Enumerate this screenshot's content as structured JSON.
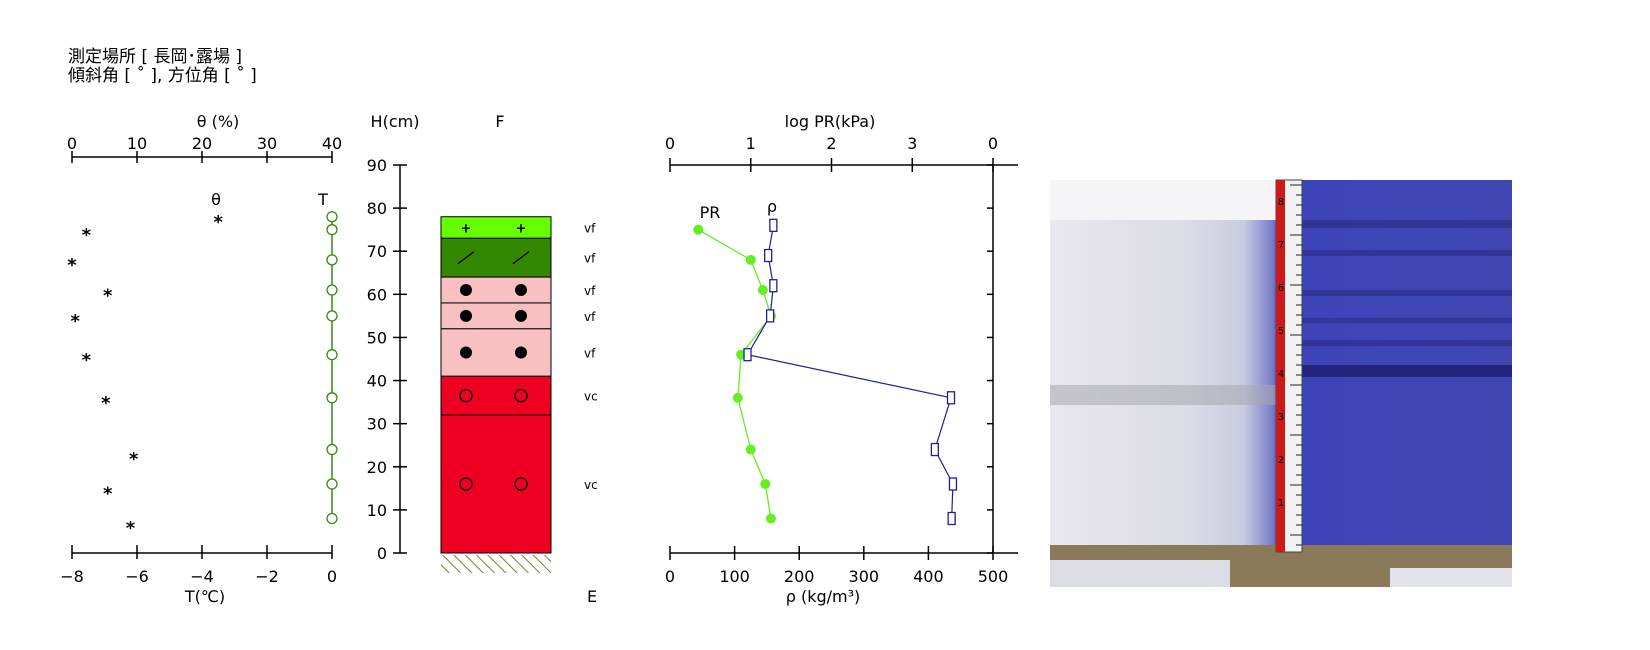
{
  "header": {
    "line1": "測定場所 [ 長岡･露場 ]",
    "line2": "傾斜角 [ ˚ ], 方位角 [ ˚ ]"
  },
  "chart_data": [
    {
      "id": "theta_T",
      "type": "scatter",
      "top_axis": {
        "label": "θ (%)",
        "range": [
          0,
          40
        ],
        "ticks": [
          0,
          10,
          20,
          30,
          40
        ]
      },
      "bottom_axis": {
        "label": "T(℃)",
        "range": [
          -8,
          0
        ],
        "ticks": [
          "-8",
          "-6",
          "-4",
          "-2",
          "0"
        ]
      },
      "series": [
        {
          "name": "θ",
          "marker": "*",
          "color": "#000000",
          "points": [
            {
              "x": 22.5,
              "y": 77
            },
            {
              "x": 2.2,
              "y": 74
            },
            {
              "x": 0,
              "y": 67
            },
            {
              "x": 5.5,
              "y": 60
            },
            {
              "x": 0.5,
              "y": 54
            },
            {
              "x": 2.2,
              "y": 45
            },
            {
              "x": 5.2,
              "y": 35
            },
            {
              "x": 9.5,
              "y": 22
            },
            {
              "x": 5.5,
              "y": 14
            },
            {
              "x": 9,
              "y": 6
            }
          ]
        },
        {
          "name": "T",
          "marker": "o",
          "color": "#3a8a0f",
          "points": [
            {
              "x": 0,
              "y": 78
            },
            {
              "x": 0,
              "y": 75
            },
            {
              "x": 0,
              "y": 68
            },
            {
              "x": 0,
              "y": 61
            },
            {
              "x": 0,
              "y": 55
            },
            {
              "x": 0,
              "y": 46
            },
            {
              "x": 0,
              "y": 36
            },
            {
              "x": 0,
              "y": 24
            },
            {
              "x": 0,
              "y": 16
            },
            {
              "x": 0,
              "y": 8
            }
          ]
        }
      ],
      "y_axis": {
        "label": "H(cm)",
        "range": [
          0,
          90
        ],
        "ticks": [
          0,
          10,
          20,
          30,
          40,
          50,
          60,
          70,
          80,
          90
        ]
      }
    },
    {
      "id": "layers",
      "type": "table",
      "header": "F",
      "footer": "E",
      "layers": [
        {
          "top": 78,
          "bottom": 73,
          "color": "#66ff00",
          "symbol": "+",
          "grain": "vf"
        },
        {
          "top": 73,
          "bottom": 64,
          "color": "#338800",
          "symbol": "/",
          "grain": "vf"
        },
        {
          "top": 64,
          "bottom": 58,
          "color": "#f8c0c0",
          "symbol": "●",
          "grain": "vf"
        },
        {
          "top": 58,
          "bottom": 52,
          "color": "#f8c0c0",
          "symbol": "●",
          "grain": "vf"
        },
        {
          "top": 52,
          "bottom": 41,
          "color": "#f8c0c0",
          "symbol": "●",
          "grain": "vf"
        },
        {
          "top": 41,
          "bottom": 32,
          "color": "#ee0022",
          "symbol": "○",
          "grain": "vc"
        },
        {
          "top": 32,
          "bottom": 0,
          "color": "#ee0022",
          "symbol": "○",
          "grain": "vc"
        }
      ]
    },
    {
      "id": "PR_rho",
      "type": "line",
      "top_axis": {
        "label": "log PR(kPa)",
        "range": [
          0,
          4
        ],
        "ticks": [
          "0",
          "1",
          "2",
          "3",
          "0"
        ]
      },
      "bottom_axis": {
        "label": "ρ (kg/m³)",
        "range": [
          0,
          500
        ],
        "ticks": [
          0,
          100,
          200,
          300,
          400,
          500
        ]
      },
      "series": [
        {
          "name": "PR",
          "color": "#66ee22",
          "points": [
            {
              "x": 0.35,
              "y": 75
            },
            {
              "x": 1.0,
              "y": 68
            },
            {
              "x": 1.15,
              "y": 61
            },
            {
              "x": 1.25,
              "y": 55
            },
            {
              "x": 0.88,
              "y": 46
            },
            {
              "x": 0.84,
              "y": 36
            },
            {
              "x": 1.0,
              "y": 24
            },
            {
              "x": 1.18,
              "y": 16
            },
            {
              "x": 1.25,
              "y": 8
            }
          ]
        },
        {
          "name": "ρ",
          "color": "#1f1f99",
          "points": [
            {
              "x": 160,
              "y": 76
            },
            {
              "x": 152,
              "y": 69
            },
            {
              "x": 160,
              "y": 62
            },
            {
              "x": 155,
              "y": 55
            },
            {
              "x": 120,
              "y": 46
            },
            {
              "x": 435,
              "y": 36
            },
            {
              "x": 410,
              "y": 24
            },
            {
              "x": 438,
              "y": 16
            },
            {
              "x": 436,
              "y": 8
            }
          ]
        }
      ]
    }
  ],
  "photo": {
    "description_icon": "snow-pit-photo-icon",
    "ruler_marks": [
      "8",
      "7",
      "6",
      "5",
      "4",
      "3",
      "2",
      "1"
    ]
  }
}
